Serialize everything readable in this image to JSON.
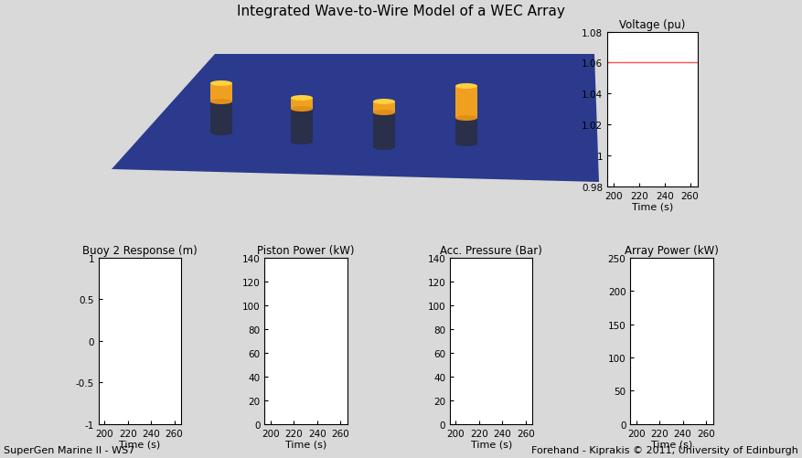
{
  "title": "Integrated Wave-to-Wire Model of a WEC Array",
  "footer_left": "SuperGen Marine II - WS7",
  "footer_right": "Forehand - Kiprakis © 2011, University of Edinburgh",
  "chart_data": [
    {
      "type": "line",
      "title": "Voltage (pu)",
      "x_label": "Time (s)",
      "xlim": [
        195,
        266
      ],
      "xticks": [
        200,
        220,
        240,
        260
      ],
      "ylim": [
        0.98,
        1.08
      ],
      "yticks": [
        0.98,
        1,
        1.02,
        1.04,
        1.06,
        1.08
      ],
      "series": [
        {
          "name": "Voltage",
          "color": "#ff5050",
          "x": [
            195,
            266
          ],
          "values": [
            1.06,
            1.06
          ]
        }
      ]
    },
    {
      "type": "line",
      "title": "Buoy 2 Response (m)",
      "x_label": "Time (s)",
      "xlim": [
        195,
        266
      ],
      "xticks": [
        200,
        220,
        240,
        260
      ],
      "ylim": [
        -1,
        1
      ],
      "yticks": [
        -1,
        -0.5,
        0,
        0.5,
        1
      ]
    },
    {
      "type": "line",
      "title": "Piston Power (kW)",
      "x_label": "Time (s)",
      "xlim": [
        195,
        266
      ],
      "xticks": [
        200,
        220,
        240,
        260
      ],
      "ylim": [
        0,
        140
      ],
      "yticks": [
        0,
        20,
        40,
        60,
        80,
        100,
        120,
        140
      ]
    },
    {
      "type": "line",
      "title": "Acc. Pressure (Bar)",
      "x_label": "Time (s)",
      "xlim": [
        195,
        266
      ],
      "xticks": [
        200,
        220,
        240,
        260
      ],
      "ylim": [
        0,
        140
      ],
      "yticks": [
        0,
        20,
        40,
        60,
        80,
        100,
        120,
        140
      ]
    },
    {
      "type": "line",
      "title": "Array Power (kW)",
      "x_label": "Time (s)",
      "xlim": [
        195,
        266
      ],
      "xticks": [
        200,
        220,
        240,
        260
      ],
      "ylim": [
        0,
        250
      ],
      "yticks": [
        0,
        50,
        100,
        150,
        200,
        250
      ]
    }
  ]
}
